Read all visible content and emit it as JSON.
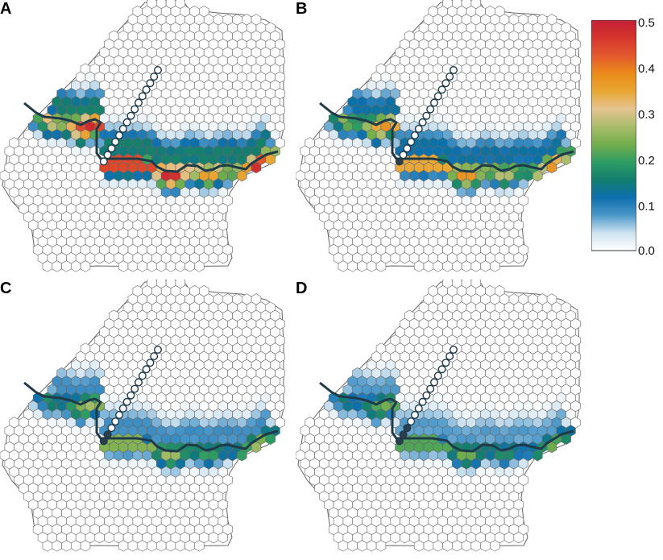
{
  "panels": [
    {
      "label": "A",
      "wells": "all_open",
      "field": "high"
    },
    {
      "label": "B",
      "wells": "one_closed",
      "field": "med"
    },
    {
      "label": "C",
      "wells": "two_closed",
      "field": "low"
    },
    {
      "label": "D",
      "wells": "three_closed",
      "field": "lowest"
    }
  ],
  "colorbar": {
    "ticks": [
      "0.5",
      "0.4",
      "0.3",
      "0.2",
      "0.1",
      "0.0"
    ],
    "min": 0.0,
    "max": 0.5,
    "colors": [
      "#ffffff",
      "#cde2f0",
      "#4a97c9",
      "#0d6fad",
      "#137e6d",
      "#2e9d63",
      "#74ae4c",
      "#a9bd6b",
      "#e6c390",
      "#e8a632",
      "#ea8a1a",
      "#e2582d",
      "#d6352d",
      "#c21f36"
    ]
  },
  "well_colors": {
    "open": "#ffffff",
    "closed": "#2c3f4f"
  },
  "river_color": "#1f3a48",
  "cell_stroke": "#666666"
}
